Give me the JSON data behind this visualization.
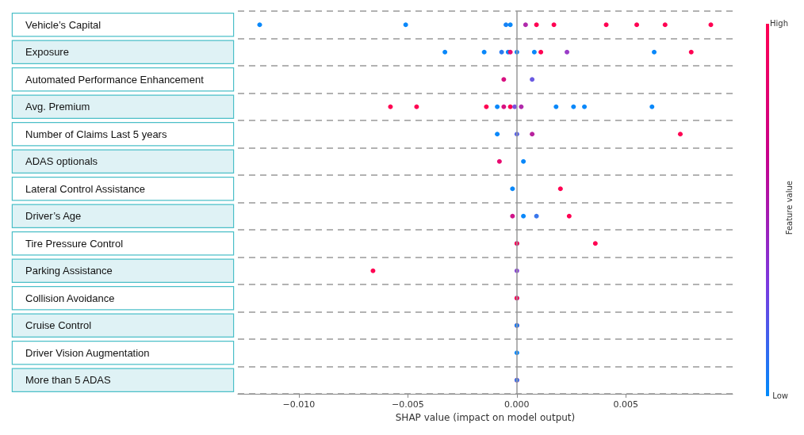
{
  "chart_data": {
    "type": "scatter",
    "orientation": "horizontal",
    "xlabel": "SHAP value (impact on model output)",
    "clabel": "Feature value",
    "categories": [
      "Vehicle’s Capital",
      "Exposure",
      "Automated Performance Enhancement",
      "Avg. Premium",
      "Number of Claims Last 5 years",
      "ADAS optionals",
      "Lateral Control Assistance",
      "Driver’s Age",
      "Tire Pressure Control",
      "Parking Assistance",
      "Collision Avoidance",
      "Cruise Control",
      "Driver Vision Augmentation",
      "More than 5 ADAS"
    ],
    "xlim": [
      -0.0128,
      0.0099
    ],
    "xticks": [
      {
        "value": -0.01,
        "label": "−0.010"
      },
      {
        "value": -0.005,
        "label": "−0.005"
      },
      {
        "value": 0,
        "label": "0.000"
      },
      {
        "value": 0.005,
        "label": "0.005"
      }
    ],
    "annotations": [
      "High",
      "Low"
    ],
    "grid": "y",
    "marker": "circle",
    "ref_lines": [
      {
        "axis": "x",
        "value": 0,
        "color": "#999999"
      }
    ],
    "series": [
      {
        "x": [
          "Vehicle’s Capital",
          "Vehicle’s Capital",
          "Vehicle’s Capital",
          "Vehicle’s Capital",
          "Vehicle’s Capital",
          "Vehicle’s Capital",
          "Vehicle’s Capital",
          "Vehicle’s Capital",
          "Vehicle’s Capital",
          "Vehicle’s Capital",
          "Vehicle’s Capital",
          "Exposure",
          "Exposure",
          "Exposure",
          "Exposure",
          "Exposure",
          "Exposure",
          "Exposure",
          "Exposure",
          "Exposure",
          "Exposure",
          "Exposure",
          "Automated Performance Enhancement",
          "Automated Performance Enhancement",
          "Avg. Premium",
          "Avg. Premium",
          "Avg. Premium",
          "Avg. Premium",
          "Avg. Premium",
          "Avg. Premium",
          "Avg. Premium",
          "Avg. Premium",
          "Avg. Premium",
          "Avg. Premium",
          "Avg. Premium",
          "Avg. Premium",
          "Number of Claims Last 5 years",
          "Number of Claims Last 5 years",
          "Number of Claims Last 5 years",
          "Number of Claims Last 5 years",
          "ADAS optionals",
          "ADAS optionals",
          "Lateral Control Assistance",
          "Lateral Control Assistance",
          "Driver’s Age",
          "Driver’s Age",
          "Driver’s Age",
          "Driver’s Age",
          "Tire Pressure Control",
          "Tire Pressure Control",
          "Tire Pressure Control",
          "Parking Assistance",
          "Parking Assistance",
          "Collision Avoidance",
          "Collision Avoidance",
          "Cruise Control",
          "Cruise Control",
          "Driver Vision Augmentation",
          "More than 5 ADAS",
          "More than 5 ADAS"
        ],
        "values": [
          -0.0118,
          -0.0051,
          -0.0005,
          -0.0003,
          0.0004,
          0.0009,
          0.0017,
          0.0041,
          0.0055,
          0.0068,
          0.0089,
          -0.0033,
          -0.0015,
          -0.0007,
          -0.0004,
          -0.0003,
          0.0,
          0.0008,
          0.0011,
          0.0023,
          0.0063,
          0.008,
          -0.0006,
          0.0007,
          -0.0058,
          -0.0046,
          -0.0014,
          -0.0009,
          -0.0006,
          -0.0003,
          -0.0001,
          0.0002,
          0.0018,
          0.0026,
          0.0031,
          0.0062,
          -0.0009,
          0.0,
          0.0007,
          0.0075,
          -0.0008,
          0.0003,
          -0.0002,
          0.002,
          -0.0002,
          0.0003,
          0.0009,
          0.0024,
          0.0,
          0.0,
          0.0036,
          -0.0066,
          0.0,
          0.0,
          0.0,
          0.0,
          0.0,
          0.0,
          0.0,
          0.0
        ],
        "colors": [
          "#0a88fa",
          "#0a88fa",
          "#1782f5",
          "#0a88fa",
          "#b02aab",
          "#ff0052",
          "#ff0052",
          "#ff0052",
          "#ff0052",
          "#ff0052",
          "#ff0052",
          "#0a88fa",
          "#0a88fa",
          "#2a7cf0",
          "#0a88fa",
          "#e80a70",
          "#1782f5",
          "#0a88fa",
          "#ff0052",
          "#9a3cc8",
          "#0a88fa",
          "#ff0052",
          "#d81080",
          "#6a5ae2",
          "#ff0052",
          "#ff0052",
          "#ff0052",
          "#0a88fa",
          "#d81080",
          "#ff0052",
          "#7a50de",
          "#b02aab",
          "#0a88fa",
          "#0a88fa",
          "#0a88fa",
          "#0a88fa",
          "#0a88fa",
          "#5a63e6",
          "#b8229e",
          "#ff0052",
          "#e80a70",
          "#0a88fa",
          "#0a88fa",
          "#ff0052",
          "#d0148a",
          "#0a88fa",
          "#3a77ec",
          "#ff0052",
          "#1782f5",
          "#ff0052",
          "#ff0052",
          "#ff0052",
          "#8a48d4",
          "#0a88fa",
          "#ff0052",
          "#ff0052",
          "#1782f5",
          "#0a88fa",
          "#ff0052",
          "#3a77ec"
        ]
      }
    ]
  }
}
